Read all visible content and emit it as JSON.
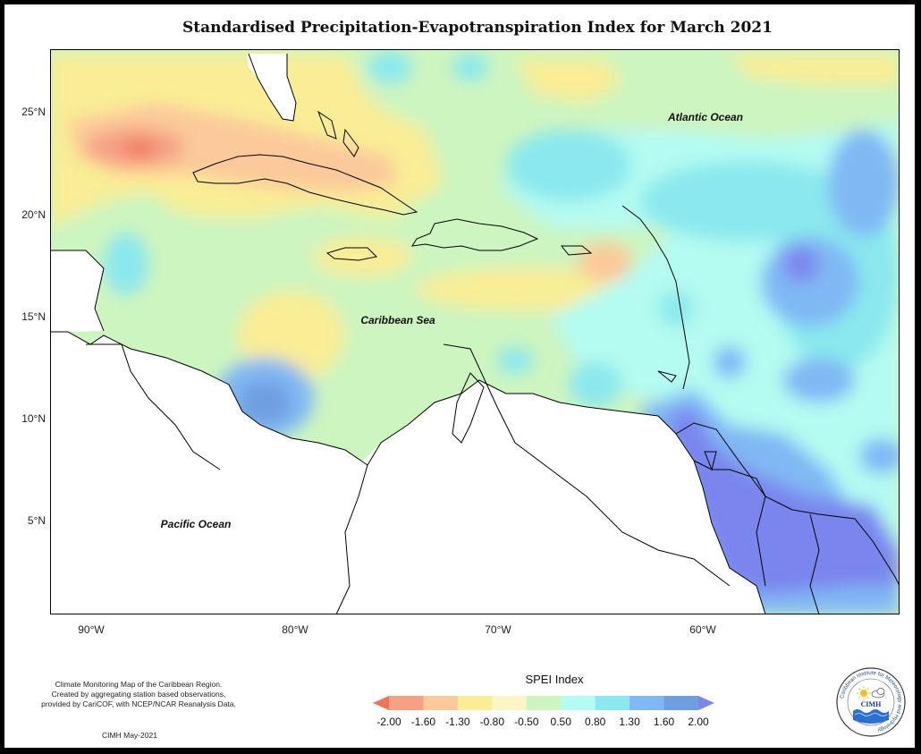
{
  "title": "Standardised Precipitation-Evapotranspiration Index for March 2021",
  "map": {
    "lat_labels": [
      "25°N",
      "20°N",
      "15°N",
      "10°N",
      "5°N"
    ],
    "lon_labels": [
      "90°W",
      "80°W",
      "70°W",
      "60°W"
    ],
    "region_labels": {
      "atlantic": "Atlantic Ocean",
      "caribbean": "Caribbean Sea",
      "pacific": "Pacific Ocean"
    }
  },
  "legend": {
    "title": "SPEI Index",
    "ticks": [
      "-2.00",
      "-1.60",
      "-1.30",
      "-0.80",
      "-0.50",
      "0.50",
      "0.80",
      "1.30",
      "1.60",
      "2.00"
    ],
    "colors": [
      "#f2735a",
      "#f4a184",
      "#fbc99a",
      "#f9ed95",
      "#fbf6c6",
      "#cdf5c0",
      "#b4fbf1",
      "#8ae8ee",
      "#80b8f4",
      "#6f9fe0",
      "#7a86ee"
    ]
  },
  "credit": {
    "line1": "Climate Monitoring Map of the Caribbean Region.",
    "line2": "Created by aggregating station based observations,",
    "line3": "provided by CariCOF, with NCEP/NCAR Reanalysis Data.",
    "stamp": "CIMH May-2021"
  },
  "logo": {
    "ring_text": "Caribbean Institute for Meteorology and Hydrology",
    "abbr": "CIMH"
  }
}
